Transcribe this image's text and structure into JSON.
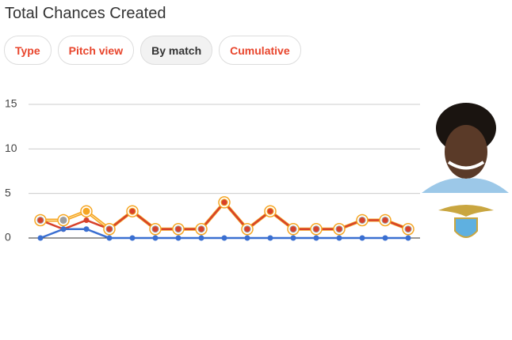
{
  "header": {
    "title": "Total Chances Created"
  },
  "tabs": [
    "Type",
    "Pitch view",
    "By match",
    "Cumulative"
  ],
  "selected_tab": 2,
  "chart_data": {
    "type": "line",
    "categories": [
      null,
      null,
      null,
      null,
      null,
      null,
      null,
      null,
      null,
      null,
      null,
      null,
      null,
      null,
      null,
      null,
      null
    ],
    "series": [
      {
        "color": "#f5a623",
        "values": [
          2,
          2,
          3,
          1,
          3,
          1,
          1,
          1,
          4,
          1,
          3,
          1,
          1,
          1,
          2,
          2,
          1
        ],
        "marker_colors": [
          "#9e9e9e",
          "#9e9e9e",
          "#f5a623",
          "#9e9e9e",
          "#f5a623",
          "#9e9e9e",
          "#9e9e9e",
          "#9e9e9e",
          "#f5a623",
          "#9e9e9e",
          "#f5a623",
          "#9e9e9e",
          "#9e9e9e",
          "#9e9e9e",
          "#9e9e9e",
          "#9e9e9e",
          "#9e9e9e"
        ]
      },
      {
        "color": "#d7412b",
        "values": [
          2,
          1,
          2,
          1,
          3,
          1,
          1,
          1,
          4,
          1,
          3,
          1,
          1,
          1,
          2,
          2,
          1
        ]
      },
      {
        "color": "#3a6fd1",
        "values": [
          0,
          1,
          1,
          0,
          0,
          0,
          0,
          0,
          0,
          0,
          0,
          0,
          0,
          0,
          0,
          0,
          0
        ]
      }
    ],
    "ylim": [
      0,
      15
    ],
    "yticks": [
      0,
      5,
      10,
      15
    ],
    "grid": true
  }
}
